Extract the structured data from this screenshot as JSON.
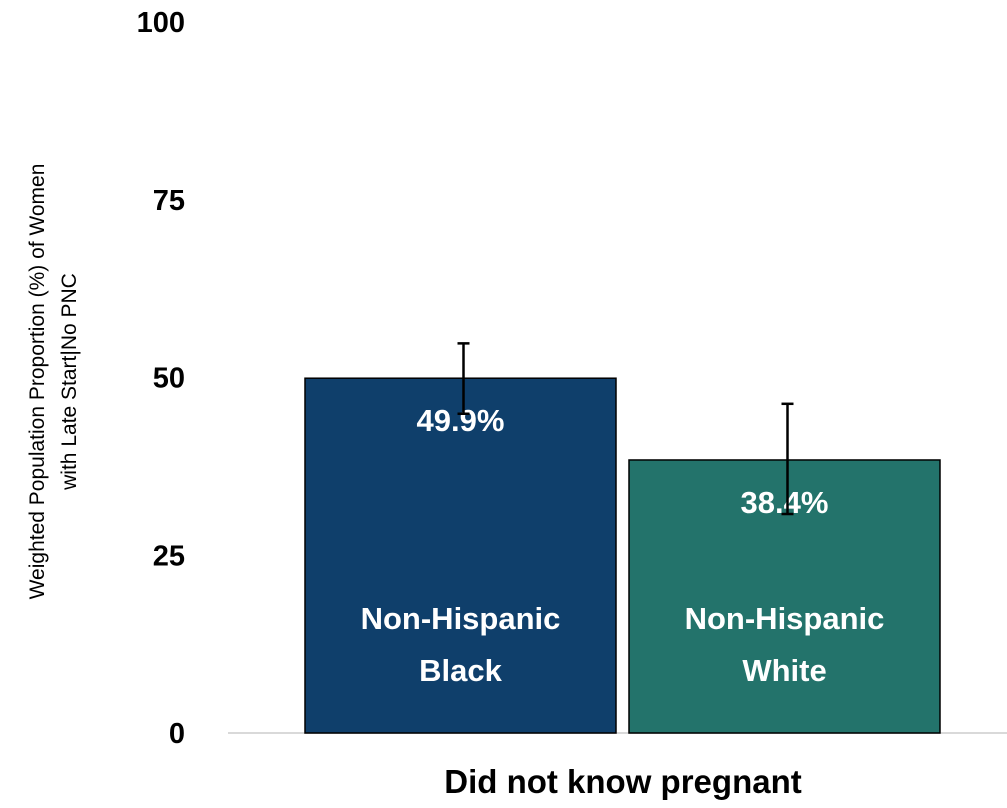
{
  "chart_data": {
    "type": "bar",
    "categories": [
      "Did not know pregnant"
    ],
    "xlabel": "Did not know pregnant",
    "ylabel_lines": [
      "Weighted Population Proportion (%) of Women",
      "with  Late Start|No PNC"
    ],
    "ylim": [
      0,
      100
    ],
    "yticks": [
      0,
      25,
      50,
      75,
      100
    ],
    "grid": false,
    "legend": "none",
    "series": [
      {
        "name": "Non-Hispanic Black",
        "label_lines": [
          "Non-Hispanic",
          "Black"
        ],
        "values": [
          49.9
        ],
        "value_label": "49.9%",
        "error": [
          [
            44.9,
            54.8
          ]
        ],
        "color": "#0f3f6b"
      },
      {
        "name": "Non-Hispanic White",
        "label_lines": [
          "Non-Hispanic",
          "White"
        ],
        "values": [
          38.4
        ],
        "value_label": "38.4%",
        "error": [
          [
            30.8,
            46.3
          ]
        ],
        "color": "#23736b"
      }
    ]
  }
}
